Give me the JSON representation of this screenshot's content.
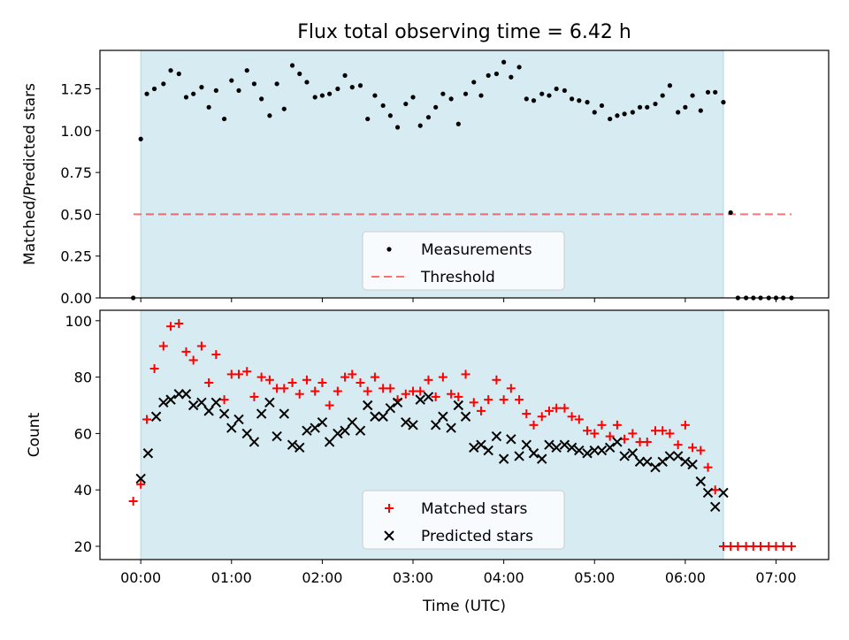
{
  "title": "Flux total observing time = 6.42 h",
  "colors": {
    "shade": "#add8e6",
    "measurement": "#000000",
    "threshold": "#ff0000",
    "matched": "#ff0000",
    "predicted": "#000000"
  },
  "chart_data": [
    {
      "type": "scatter",
      "ylabel": "Matched/Predicted stars",
      "ylim": [
        0,
        1.48
      ],
      "xlim": [
        -0.45,
        7.58
      ],
      "yticks": [
        "0.00",
        "0.25",
        "0.50",
        "0.75",
        "1.00",
        "1.25"
      ],
      "shaded_span": [
        0,
        6.42
      ],
      "legend": {
        "placement": "lower-center",
        "entries": [
          "Measurements",
          "Threshold"
        ]
      },
      "threshold": {
        "value": 0.5,
        "x": [
          -0.08,
          7.17
        ]
      },
      "series": [
        {
          "name": "Measurements",
          "x": [
            -0.083,
            0,
            0.067,
            0.15,
            0.25,
            0.33,
            0.42,
            0.5,
            0.58,
            0.67,
            0.75,
            0.83,
            0.92,
            1.0,
            1.08,
            1.17,
            1.25,
            1.33,
            1.42,
            1.5,
            1.58,
            1.67,
            1.75,
            1.83,
            1.92,
            2.0,
            2.08,
            2.17,
            2.25,
            2.33,
            2.42,
            2.5,
            2.58,
            2.67,
            2.75,
            2.83,
            2.92,
            3.0,
            3.08,
            3.17,
            3.25,
            3.33,
            3.42,
            3.5,
            3.58,
            3.67,
            3.75,
            3.83,
            3.92,
            4.0,
            4.08,
            4.17,
            4.25,
            4.33,
            4.42,
            4.5,
            4.58,
            4.67,
            4.75,
            4.83,
            4.92,
            5.0,
            5.08,
            5.17,
            5.25,
            5.33,
            5.42,
            5.5,
            5.58,
            5.67,
            5.75,
            5.83,
            5.92,
            6.0,
            6.08,
            6.17,
            6.25,
            6.33,
            6.42,
            6.5,
            6.58,
            6.67,
            6.75,
            6.83,
            6.92,
            7.0,
            7.08,
            7.17
          ],
          "y": [
            0,
            0.95,
            1.22,
            1.25,
            1.28,
            1.36,
            1.34,
            1.2,
            1.22,
            1.26,
            1.14,
            1.24,
            1.07,
            1.3,
            1.24,
            1.36,
            1.28,
            1.19,
            1.09,
            1.28,
            1.13,
            1.39,
            1.34,
            1.29,
            1.2,
            1.21,
            1.22,
            1.25,
            1.33,
            1.26,
            1.27,
            1.07,
            1.21,
            1.15,
            1.09,
            1.02,
            1.16,
            1.2,
            1.03,
            1.08,
            1.14,
            1.22,
            1.19,
            1.04,
            1.22,
            1.29,
            1.21,
            1.33,
            1.34,
            1.41,
            1.32,
            1.38,
            1.19,
            1.18,
            1.22,
            1.21,
            1.25,
            1.24,
            1.19,
            1.18,
            1.17,
            1.11,
            1.15,
            1.07,
            1.09,
            1.1,
            1.11,
            1.14,
            1.14,
            1.16,
            1.21,
            1.27,
            1.11,
            1.14,
            1.21,
            1.12,
            1.23,
            1.23,
            1.17,
            0.51,
            0,
            0,
            0,
            0,
            0,
            0,
            0,
            0
          ]
        }
      ]
    },
    {
      "type": "scatter",
      "ylabel": "Count",
      "xlabel": "Time (UTC)",
      "ylim": [
        15.3,
        103.7
      ],
      "xlim": [
        -0.45,
        7.58
      ],
      "yticks": [
        "20",
        "40",
        "60",
        "80",
        "100"
      ],
      "xticks": [
        "00:00",
        "01:00",
        "02:00",
        "03:00",
        "04:00",
        "05:00",
        "06:00",
        "07:00"
      ],
      "shaded_span": [
        0,
        6.42
      ],
      "legend": {
        "placement": "lower-center",
        "entries": [
          "Matched stars",
          "Predicted stars"
        ]
      },
      "series": [
        {
          "name": "Matched stars",
          "x": [
            -0.083,
            0,
            0.067,
            0.15,
            0.25,
            0.33,
            0.42,
            0.5,
            0.58,
            0.67,
            0.75,
            0.83,
            0.92,
            1.0,
            1.08,
            1.17,
            1.25,
            1.33,
            1.42,
            1.5,
            1.58,
            1.67,
            1.75,
            1.83,
            1.92,
            2.0,
            2.08,
            2.17,
            2.25,
            2.33,
            2.42,
            2.5,
            2.58,
            2.67,
            2.75,
            2.83,
            2.92,
            3.0,
            3.08,
            3.17,
            3.25,
            3.33,
            3.42,
            3.5,
            3.58,
            3.67,
            3.75,
            3.83,
            3.92,
            4.0,
            4.08,
            4.17,
            4.25,
            4.33,
            4.42,
            4.5,
            4.58,
            4.67,
            4.75,
            4.83,
            4.92,
            5.0,
            5.08,
            5.17,
            5.25,
            5.33,
            5.42,
            5.5,
            5.58,
            5.67,
            5.75,
            5.83,
            5.92,
            6.0,
            6.08,
            6.17,
            6.25,
            6.33,
            6.42,
            6.5,
            6.58,
            6.67,
            6.75,
            6.83,
            6.92,
            7.0,
            7.08,
            7.17
          ],
          "y": [
            36,
            42,
            65,
            83,
            91,
            98,
            99,
            89,
            86,
            91,
            78,
            88,
            72,
            81,
            81,
            82,
            73,
            80,
            79,
            76,
            76,
            78,
            74,
            79,
            75,
            78,
            70,
            75,
            80,
            81,
            78,
            75,
            80,
            76,
            76,
            72,
            74,
            75,
            75,
            79,
            73,
            80,
            74,
            73,
            81,
            71,
            68,
            72,
            79,
            72,
            76,
            72,
            67,
            63,
            66,
            68,
            69,
            69,
            66,
            65,
            61,
            60,
            63,
            59,
            63,
            58,
            60,
            57,
            57,
            61,
            61,
            60,
            56,
            63,
            55,
            54,
            48,
            40,
            20,
            20,
            20,
            20,
            20,
            20,
            20,
            20,
            20,
            20
          ]
        },
        {
          "name": "Predicted stars",
          "x": [
            0,
            0.08,
            0.17,
            0.25,
            0.33,
            0.42,
            0.5,
            0.58,
            0.67,
            0.75,
            0.83,
            0.92,
            1.0,
            1.08,
            1.17,
            1.25,
            1.33,
            1.42,
            1.5,
            1.58,
            1.67,
            1.75,
            1.83,
            1.92,
            2.0,
            2.08,
            2.17,
            2.25,
            2.33,
            2.42,
            2.5,
            2.58,
            2.67,
            2.75,
            2.83,
            2.92,
            3.0,
            3.08,
            3.17,
            3.25,
            3.33,
            3.42,
            3.5,
            3.58,
            3.67,
            3.75,
            3.83,
            3.92,
            4.0,
            4.08,
            4.17,
            4.25,
            4.33,
            4.42,
            4.5,
            4.58,
            4.67,
            4.75,
            4.83,
            4.92,
            5.0,
            5.08,
            5.17,
            5.25,
            5.33,
            5.42,
            5.5,
            5.58,
            5.67,
            5.75,
            5.83,
            5.92,
            6.0,
            6.08,
            6.17,
            6.25,
            6.33,
            6.42
          ],
          "y": [
            44,
            53,
            66,
            71,
            72,
            74,
            74,
            70,
            71,
            68,
            71,
            67,
            62,
            65,
            60,
            57,
            67,
            71,
            59,
            67,
            56,
            55,
            61,
            62,
            64,
            57,
            60,
            61,
            64,
            61,
            70,
            66,
            66,
            69,
            71,
            64,
            63,
            72,
            73,
            63,
            66,
            62,
            70,
            66,
            55,
            56,
            54,
            59,
            51,
            58,
            52,
            56,
            53,
            51,
            56,
            55,
            56,
            55,
            54,
            53,
            54,
            54,
            55,
            57,
            52,
            53,
            50,
            50,
            48,
            50,
            52,
            52,
            50,
            49,
            43,
            39,
            34,
            39
          ]
        }
      ]
    }
  ]
}
